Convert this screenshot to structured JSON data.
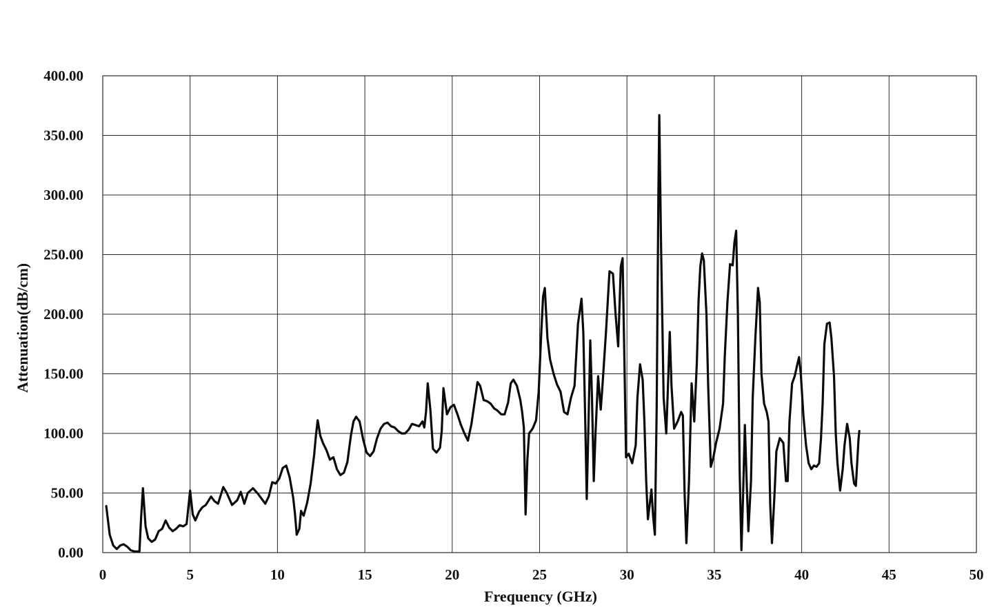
{
  "chart_data": {
    "type": "line",
    "xlabel": "Frequency (GHz)",
    "ylabel": "Attenuation(dB/cm)",
    "xlim": [
      0,
      50
    ],
    "ylim": [
      0,
      400
    ],
    "x_ticks": [
      "0",
      "5",
      "10",
      "15",
      "20",
      "25",
      "30",
      "35",
      "40",
      "45",
      "50"
    ],
    "y_ticks": [
      "0.00",
      "50.00",
      "100.00",
      "150.00",
      "200.00",
      "250.00",
      "300.00",
      "350.00",
      "400.00"
    ],
    "grid": true,
    "line_color": "#0a0a0a",
    "series": [
      {
        "points": [
          [
            0.2,
            39
          ],
          [
            0.4,
            15
          ],
          [
            0.6,
            6
          ],
          [
            0.8,
            3
          ],
          [
            1.0,
            6
          ],
          [
            1.2,
            7
          ],
          [
            1.4,
            5
          ],
          [
            1.6,
            2
          ],
          [
            1.8,
            1
          ],
          [
            2.0,
            1
          ],
          [
            2.1,
            1
          ],
          [
            2.2,
            30
          ],
          [
            2.3,
            54
          ],
          [
            2.45,
            22
          ],
          [
            2.6,
            12
          ],
          [
            2.8,
            9
          ],
          [
            3.0,
            11
          ],
          [
            3.2,
            18
          ],
          [
            3.4,
            20
          ],
          [
            3.6,
            27
          ],
          [
            3.8,
            21
          ],
          [
            4.0,
            18
          ],
          [
            4.2,
            20
          ],
          [
            4.4,
            23
          ],
          [
            4.6,
            22
          ],
          [
            4.8,
            24
          ],
          [
            5.0,
            52
          ],
          [
            5.15,
            32
          ],
          [
            5.3,
            27
          ],
          [
            5.5,
            34
          ],
          [
            5.7,
            38
          ],
          [
            5.9,
            40
          ],
          [
            6.2,
            47
          ],
          [
            6.4,
            43
          ],
          [
            6.6,
            41
          ],
          [
            6.9,
            55
          ],
          [
            7.1,
            50
          ],
          [
            7.4,
            40
          ],
          [
            7.7,
            44
          ],
          [
            7.9,
            51
          ],
          [
            8.1,
            41
          ],
          [
            8.3,
            50
          ],
          [
            8.6,
            54
          ],
          [
            8.9,
            49
          ],
          [
            9.1,
            45
          ],
          [
            9.3,
            41
          ],
          [
            9.5,
            47
          ],
          [
            9.7,
            59
          ],
          [
            9.9,
            58
          ],
          [
            10.1,
            62
          ],
          [
            10.3,
            71
          ],
          [
            10.5,
            73
          ],
          [
            10.7,
            63
          ],
          [
            10.9,
            46
          ],
          [
            11.0,
            33
          ],
          [
            11.1,
            15
          ],
          [
            11.25,
            20
          ],
          [
            11.35,
            35
          ],
          [
            11.5,
            31
          ],
          [
            11.7,
            42
          ],
          [
            11.9,
            58
          ],
          [
            12.1,
            82
          ],
          [
            12.2,
            98
          ],
          [
            12.3,
            111
          ],
          [
            12.45,
            98
          ],
          [
            12.6,
            92
          ],
          [
            12.8,
            86
          ],
          [
            13.0,
            78
          ],
          [
            13.2,
            80
          ],
          [
            13.4,
            70
          ],
          [
            13.6,
            65
          ],
          [
            13.8,
            67
          ],
          [
            14.0,
            76
          ],
          [
            14.2,
            98
          ],
          [
            14.35,
            110
          ],
          [
            14.5,
            114
          ],
          [
            14.7,
            110
          ],
          [
            14.9,
            95
          ],
          [
            15.1,
            84
          ],
          [
            15.3,
            81
          ],
          [
            15.5,
            85
          ],
          [
            15.7,
            96
          ],
          [
            15.9,
            104
          ],
          [
            16.1,
            108
          ],
          [
            16.3,
            109
          ],
          [
            16.5,
            106
          ],
          [
            16.7,
            105
          ],
          [
            16.9,
            102
          ],
          [
            17.1,
            100
          ],
          [
            17.3,
            100
          ],
          [
            17.5,
            103
          ],
          [
            17.7,
            108
          ],
          [
            17.9,
            107
          ],
          [
            18.1,
            106
          ],
          [
            18.3,
            110
          ],
          [
            18.4,
            105
          ],
          [
            18.5,
            118
          ],
          [
            18.6,
            142
          ],
          [
            18.75,
            120
          ],
          [
            18.9,
            87
          ],
          [
            19.1,
            84
          ],
          [
            19.3,
            88
          ],
          [
            19.4,
            102
          ],
          [
            19.5,
            138
          ],
          [
            19.7,
            116
          ],
          [
            19.9,
            122
          ],
          [
            20.1,
            124
          ],
          [
            20.3,
            116
          ],
          [
            20.5,
            107
          ],
          [
            20.7,
            100
          ],
          [
            20.9,
            94
          ],
          [
            21.1,
            108
          ],
          [
            21.3,
            128
          ],
          [
            21.45,
            143
          ],
          [
            21.6,
            140
          ],
          [
            21.8,
            128
          ],
          [
            22.0,
            127
          ],
          [
            22.2,
            125
          ],
          [
            22.4,
            121
          ],
          [
            22.6,
            119
          ],
          [
            22.8,
            116
          ],
          [
            23.0,
            116
          ],
          [
            23.2,
            126
          ],
          [
            23.35,
            142
          ],
          [
            23.5,
            145
          ],
          [
            23.7,
            140
          ],
          [
            23.9,
            128
          ],
          [
            24.0,
            118
          ],
          [
            24.1,
            105
          ],
          [
            24.2,
            32
          ],
          [
            24.3,
            78
          ],
          [
            24.4,
            100
          ],
          [
            24.6,
            104
          ],
          [
            24.8,
            111
          ],
          [
            24.95,
            135
          ],
          [
            25.1,
            185
          ],
          [
            25.2,
            215
          ],
          [
            25.3,
            222
          ],
          [
            25.45,
            180
          ],
          [
            25.6,
            162
          ],
          [
            25.8,
            150
          ],
          [
            26.0,
            141
          ],
          [
            26.2,
            135
          ],
          [
            26.4,
            118
          ],
          [
            26.6,
            116
          ],
          [
            26.8,
            130
          ],
          [
            27.0,
            140
          ],
          [
            27.2,
            192
          ],
          [
            27.4,
            213
          ],
          [
            27.5,
            185
          ],
          [
            27.6,
            120
          ],
          [
            27.7,
            45
          ],
          [
            27.8,
            110
          ],
          [
            27.9,
            178
          ],
          [
            28.0,
            130
          ],
          [
            28.1,
            60
          ],
          [
            28.2,
            100
          ],
          [
            28.35,
            148
          ],
          [
            28.5,
            120
          ],
          [
            28.6,
            140
          ],
          [
            28.8,
            185
          ],
          [
            29.0,
            236
          ],
          [
            29.2,
            234
          ],
          [
            29.35,
            200
          ],
          [
            29.5,
            173
          ],
          [
            29.65,
            240
          ],
          [
            29.75,
            247
          ],
          [
            29.85,
            165
          ],
          [
            29.95,
            80
          ],
          [
            30.1,
            83
          ],
          [
            30.3,
            75
          ],
          [
            30.5,
            90
          ],
          [
            30.6,
            130
          ],
          [
            30.75,
            158
          ],
          [
            30.9,
            145
          ],
          [
            31.0,
            110
          ],
          [
            31.1,
            60
          ],
          [
            31.2,
            28
          ],
          [
            31.3,
            40
          ],
          [
            31.4,
            53
          ],
          [
            31.5,
            30
          ],
          [
            31.6,
            15
          ],
          [
            31.7,
            120
          ],
          [
            31.8,
            300
          ],
          [
            31.85,
            367
          ],
          [
            31.95,
            260
          ],
          [
            32.1,
            130
          ],
          [
            32.25,
            100
          ],
          [
            32.35,
            140
          ],
          [
            32.45,
            185
          ],
          [
            32.55,
            140
          ],
          [
            32.7,
            104
          ],
          [
            32.9,
            110
          ],
          [
            33.1,
            118
          ],
          [
            33.2,
            115
          ],
          [
            33.3,
            50
          ],
          [
            33.4,
            8
          ],
          [
            33.55,
            60
          ],
          [
            33.7,
            142
          ],
          [
            33.85,
            110
          ],
          [
            34.0,
            160
          ],
          [
            34.1,
            212
          ],
          [
            34.2,
            240
          ],
          [
            34.3,
            251
          ],
          [
            34.4,
            245
          ],
          [
            34.55,
            200
          ],
          [
            34.65,
            140
          ],
          [
            34.8,
            72
          ],
          [
            34.95,
            80
          ],
          [
            35.1,
            92
          ],
          [
            35.3,
            104
          ],
          [
            35.5,
            125
          ],
          [
            35.6,
            165
          ],
          [
            35.75,
            210
          ],
          [
            35.9,
            242
          ],
          [
            36.05,
            241
          ],
          [
            36.15,
            260
          ],
          [
            36.25,
            270
          ],
          [
            36.35,
            200
          ],
          [
            36.45,
            70
          ],
          [
            36.55,
            2
          ],
          [
            36.65,
            50
          ],
          [
            36.75,
            107
          ],
          [
            36.85,
            60
          ],
          [
            36.95,
            18
          ],
          [
            37.1,
            60
          ],
          [
            37.2,
            130
          ],
          [
            37.35,
            180
          ],
          [
            37.5,
            222
          ],
          [
            37.6,
            210
          ],
          [
            37.7,
            150
          ],
          [
            37.85,
            125
          ],
          [
            38.0,
            118
          ],
          [
            38.1,
            110
          ],
          [
            38.2,
            40
          ],
          [
            38.3,
            8
          ],
          [
            38.45,
            50
          ],
          [
            38.55,
            85
          ],
          [
            38.75,
            96
          ],
          [
            38.95,
            92
          ],
          [
            39.1,
            60
          ],
          [
            39.2,
            60
          ],
          [
            39.3,
            110
          ],
          [
            39.45,
            142
          ],
          [
            39.6,
            148
          ],
          [
            39.75,
            158
          ],
          [
            39.85,
            164
          ],
          [
            39.95,
            150
          ],
          [
            40.1,
            115
          ],
          [
            40.25,
            90
          ],
          [
            40.4,
            75
          ],
          [
            40.55,
            70
          ],
          [
            40.7,
            73
          ],
          [
            40.85,
            72
          ],
          [
            41.0,
            75
          ],
          [
            41.1,
            95
          ],
          [
            41.2,
            125
          ],
          [
            41.3,
            175
          ],
          [
            41.45,
            192
          ],
          [
            41.6,
            193
          ],
          [
            41.7,
            180
          ],
          [
            41.85,
            148
          ],
          [
            41.95,
            100
          ],
          [
            42.05,
            75
          ],
          [
            42.2,
            52
          ],
          [
            42.35,
            70
          ],
          [
            42.45,
            90
          ],
          [
            42.6,
            108
          ],
          [
            42.75,
            96
          ],
          [
            42.85,
            75
          ],
          [
            43.0,
            58
          ],
          [
            43.1,
            56
          ],
          [
            43.25,
            95
          ],
          [
            43.3,
            102
          ]
        ]
      }
    ]
  }
}
